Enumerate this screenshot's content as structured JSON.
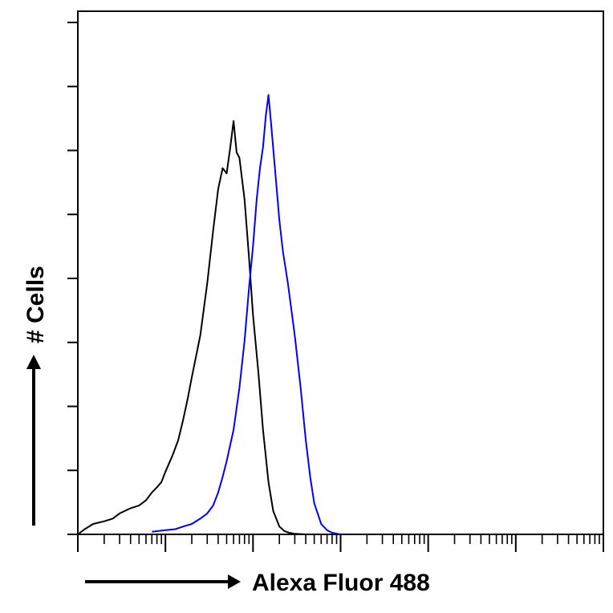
{
  "chart_data": {
    "type": "line",
    "title": "",
    "xlabel": "Alexa Fluor 488",
    "ylabel": "# Cells",
    "x_scale": "log",
    "xlim": [
      1,
      1000000
    ],
    "ylim": [
      0,
      100
    ],
    "grid": false,
    "legend": "none",
    "series": [
      {
        "color": "#000000",
        "x": [
          1,
          1.2,
          1.5,
          2,
          2.5,
          3,
          4,
          5,
          6,
          7,
          8,
          9,
          10,
          12,
          14,
          16,
          18,
          20,
          25,
          30,
          35,
          40,
          45,
          50,
          55,
          60,
          65,
          70,
          80,
          90,
          100,
          115,
          130,
          150,
          170,
          200,
          230,
          260,
          300,
          400
        ],
        "y": [
          0,
          1,
          2,
          2.5,
          3,
          4,
          5,
          5.5,
          6.5,
          8,
          9,
          10,
          12,
          15,
          18,
          22,
          26,
          30,
          38,
          48,
          58,
          66,
          70,
          69,
          74,
          79,
          73,
          72,
          64,
          53,
          42,
          31,
          20,
          10,
          4.5,
          1.5,
          0.6,
          0.3,
          0.1,
          0
        ]
      },
      {
        "color": "#0000ff",
        "x": [
          7,
          10,
          13,
          16,
          20,
          25,
          30,
          35,
          40,
          45,
          50,
          60,
          70,
          80,
          90,
          100,
          110,
          120,
          130,
          140,
          150,
          160,
          180,
          200,
          220,
          250,
          300,
          350,
          400,
          450,
          500,
          600,
          700,
          800,
          1000
        ],
        "y": [
          0.5,
          0.8,
          1,
          1.5,
          2,
          3,
          4,
          5.5,
          8,
          11,
          14,
          20,
          28,
          37,
          47,
          55,
          64,
          70,
          74,
          80,
          84,
          79,
          69,
          60,
          54,
          48,
          38,
          28,
          18,
          11,
          6,
          2,
          0.8,
          0.3,
          0
        ]
      }
    ]
  },
  "axes": {
    "x_arrow_label": "Alexa Fluor 488",
    "y_arrow_label": "# Cells"
  }
}
